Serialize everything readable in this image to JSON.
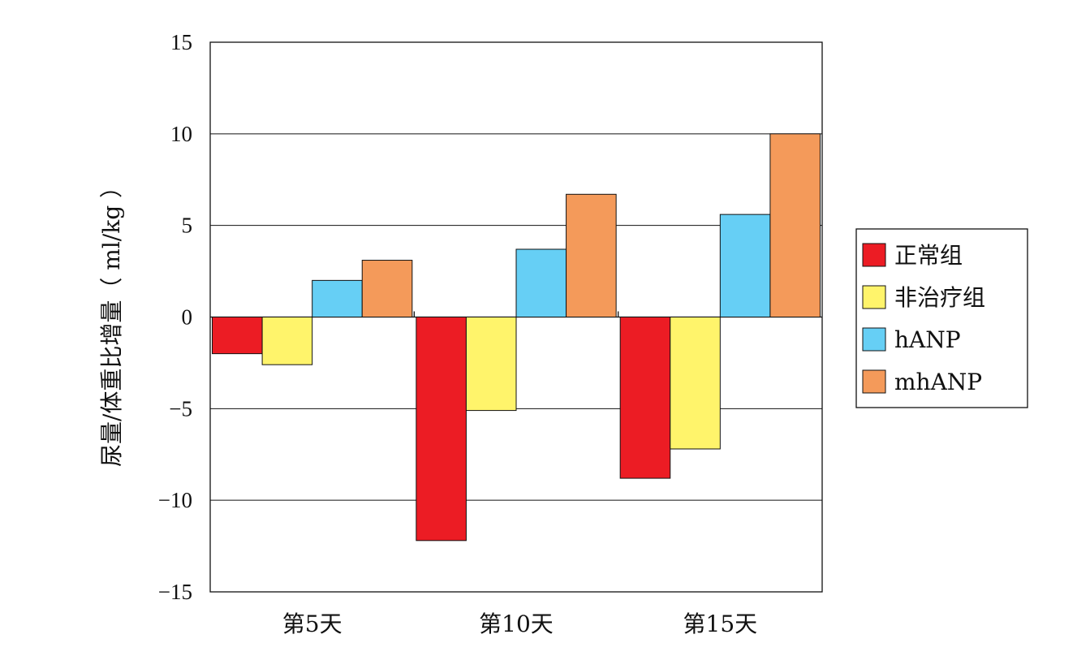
{
  "chart_data": {
    "type": "bar",
    "title": "",
    "xlabel": "",
    "ylabel": "尿量/体重比增量（ ml/kg ）",
    "ylim": [
      -15,
      15
    ],
    "yticks": [
      15,
      10,
      5,
      0,
      -5,
      -10,
      -15
    ],
    "ytick_labels": [
      "15",
      "10",
      "5",
      "0",
      "−5",
      "−10",
      "−15"
    ],
    "categories": [
      "第5天",
      "第10天",
      "第15天"
    ],
    "series": [
      {
        "name": "正常组",
        "color": "#ec1c24",
        "values": [
          -2.0,
          -12.2,
          -8.8
        ]
      },
      {
        "name": "非治疗组",
        "color": "#fff46b",
        "values": [
          -2.6,
          -5.1,
          -7.2
        ]
      },
      {
        "name": "hANP",
        "color": "#66cff5",
        "values": [
          2.0,
          3.7,
          5.6
        ]
      },
      {
        "name": "mhANP",
        "color": "#f49a5a",
        "values": [
          3.1,
          6.7,
          10.0
        ]
      }
    ],
    "grid": true,
    "legend_position": "right"
  }
}
